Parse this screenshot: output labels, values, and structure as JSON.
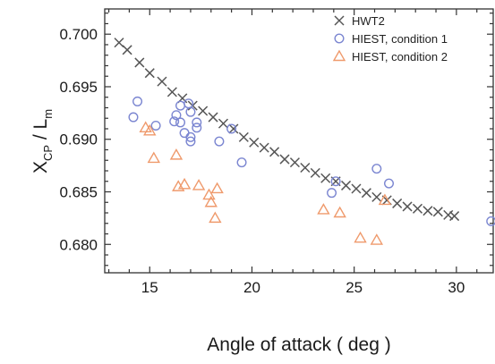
{
  "chart_data": {
    "type": "scatter",
    "xlabel": "Angle of attack ( deg )",
    "ylabel_main": "X",
    "ylabel_sub1": "CP",
    "ylabel_mid": " / L",
    "ylabel_sub2": "m",
    "xlim": [
      12.8,
      31.8
    ],
    "ylim": [
      0.6773,
      0.7024
    ],
    "x_ticks": [
      15,
      20,
      25,
      30
    ],
    "y_ticks": [
      0.68,
      0.685,
      0.69,
      0.695,
      0.7
    ],
    "x_tick_labels": [
      "15",
      "20",
      "25",
      "30"
    ],
    "y_tick_labels": [
      "0.680",
      "0.685",
      "0.690",
      "0.695",
      "0.700"
    ],
    "legend_position": "top-right",
    "series": [
      {
        "name": "HWT2",
        "marker": "x",
        "color": "#555555",
        "points": [
          [
            13.5,
            0.6992
          ],
          [
            13.9,
            0.6985
          ],
          [
            14.5,
            0.6973
          ],
          [
            15.0,
            0.6963
          ],
          [
            15.6,
            0.6955
          ],
          [
            16.1,
            0.6945
          ],
          [
            16.6,
            0.6939
          ],
          [
            17.1,
            0.6932
          ],
          [
            17.6,
            0.6927
          ],
          [
            18.1,
            0.6921
          ],
          [
            18.6,
            0.6915
          ],
          [
            19.1,
            0.691
          ],
          [
            19.6,
            0.6902
          ],
          [
            20.1,
            0.6897
          ],
          [
            20.6,
            0.6892
          ],
          [
            21.1,
            0.6888
          ],
          [
            21.6,
            0.6881
          ],
          [
            22.1,
            0.6878
          ],
          [
            22.6,
            0.6873
          ],
          [
            23.1,
            0.6868
          ],
          [
            23.6,
            0.6863
          ],
          [
            24.1,
            0.686
          ],
          [
            24.6,
            0.6856
          ],
          [
            25.1,
            0.6853
          ],
          [
            25.6,
            0.6849
          ],
          [
            26.1,
            0.6845
          ],
          [
            26.6,
            0.6842
          ],
          [
            27.1,
            0.6839
          ],
          [
            27.6,
            0.6836
          ],
          [
            28.1,
            0.6834
          ],
          [
            28.6,
            0.6832
          ],
          [
            29.1,
            0.6831
          ],
          [
            29.6,
            0.6828
          ],
          [
            29.9,
            0.6827
          ]
        ]
      },
      {
        "name": "HIEST, condition 1",
        "marker": "circle",
        "color": "#7b86d1",
        "points": [
          [
            14.4,
            0.6936
          ],
          [
            14.2,
            0.6921
          ],
          [
            15.3,
            0.6913
          ],
          [
            16.2,
            0.6917
          ],
          [
            16.3,
            0.6923
          ],
          [
            16.5,
            0.6932
          ],
          [
            16.5,
            0.6916
          ],
          [
            16.7,
            0.6906
          ],
          [
            16.9,
            0.6934
          ],
          [
            17.0,
            0.6926
          ],
          [
            17.0,
            0.6902
          ],
          [
            17.0,
            0.6898
          ],
          [
            17.3,
            0.6911
          ],
          [
            17.3,
            0.6916
          ],
          [
            18.4,
            0.6898
          ],
          [
            19.0,
            0.691
          ],
          [
            19.5,
            0.6878
          ],
          [
            23.9,
            0.6849
          ],
          [
            24.1,
            0.686
          ],
          [
            26.1,
            0.6872
          ],
          [
            26.7,
            0.6858
          ],
          [
            31.7,
            0.6822
          ]
        ]
      },
      {
        "name": "HIEST, condition 2",
        "marker": "triangle",
        "color": "#ef9a6c",
        "points": [
          [
            14.8,
            0.6911
          ],
          [
            15.0,
            0.6908
          ],
          [
            15.2,
            0.6882
          ],
          [
            16.3,
            0.6885
          ],
          [
            16.4,
            0.6855
          ],
          [
            16.7,
            0.6857
          ],
          [
            17.4,
            0.6856
          ],
          [
            17.9,
            0.6847
          ],
          [
            18.0,
            0.684
          ],
          [
            18.2,
            0.6825
          ],
          [
            18.3,
            0.6853
          ],
          [
            23.5,
            0.6833
          ],
          [
            24.3,
            0.683
          ],
          [
            25.3,
            0.6806
          ],
          [
            26.1,
            0.6804
          ],
          [
            26.5,
            0.6842
          ]
        ]
      }
    ]
  }
}
